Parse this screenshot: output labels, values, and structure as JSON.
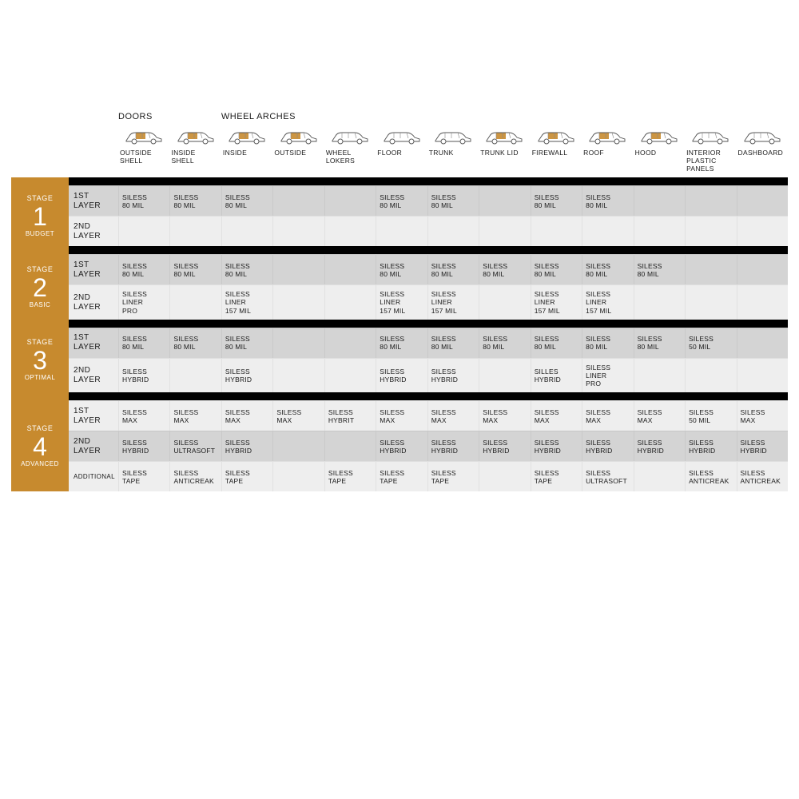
{
  "colors": {
    "accent": "#c78a2e",
    "black": "#000000",
    "shade_a": "#d4d4d4",
    "shade_b": "#eeeeee",
    "white": "#ffffff",
    "text": "#1a1a1a"
  },
  "font": {
    "header_group": 11,
    "col_label": 8.5,
    "layer_label": 10,
    "data_cell": 8.5,
    "stage_word": 9,
    "stage_num": 32,
    "stage_sub": 8
  },
  "group_headers": {
    "doors": "DOORS",
    "wheel_arches": "WHEEL ARCHES"
  },
  "columns": [
    "OUTSIDE\nSHELL",
    "INSIDE\nSHELL",
    "INSIDE",
    "OUTSIDE",
    "WHEEL\nLOKERS",
    "FLOOR",
    "TRUNK",
    "TRUNK\nLID",
    "FIREWALL",
    "ROOF",
    "HOOD",
    "INTERIOR\nPLASTIC\nPANELS",
    "DASHBOARD"
  ],
  "icon_highlight": [
    true,
    true,
    true,
    true,
    false,
    false,
    false,
    true,
    true,
    true,
    true,
    false,
    false
  ],
  "stages": [
    {
      "title": "STAGE",
      "num": "1",
      "sub": "BUDGET",
      "layers": [
        {
          "label": "1ST\nLAYER",
          "shade": "a",
          "cells": [
            "SILESS\n80 MIL",
            "SILESS\n80 MIL",
            "SILESS\n80 MIL",
            "",
            "",
            "SILESS\n80 MIL",
            "SILESS\n80 MIL",
            "",
            "SILESS\n80 MIL",
            "SILESS\n80 MIL",
            "",
            "",
            ""
          ]
        },
        {
          "label": "2ND\nLAYER",
          "shade": "b",
          "cells": [
            "",
            "",
            "",
            "",
            "",
            "",
            "",
            "",
            "",
            "",
            "",
            "",
            ""
          ]
        }
      ]
    },
    {
      "title": "STAGE",
      "num": "2",
      "sub": "BASIC",
      "layers": [
        {
          "label": "1ST\nLAYER",
          "shade": "a",
          "cells": [
            "SILESS\n80 MIL",
            "SILESS\n80 MIL",
            "SILESS\n80 MIL",
            "",
            "",
            "SILESS\n80 MIL",
            "SILESS\n80 MIL",
            "SILESS\n80 MIL",
            "SILESS\n80 MIL",
            "SILESS\n80 MIL",
            "SILESS\n80 MIL",
            "",
            ""
          ]
        },
        {
          "label": "2ND\nLAYER",
          "shade": "b",
          "cells": [
            "SILESS\nLINER\nPRO",
            "",
            "SILESS\nLINER\n157 MIL",
            "",
            "",
            "SILESS\nLINER\n157 MIL",
            "SILESS\nLINER\n157 MIL",
            "",
            "SILESS\nLINER\n157 MIL",
            "SILESS\nLINER\n157 MIL",
            "",
            "",
            ""
          ]
        }
      ]
    },
    {
      "title": "STAGE",
      "num": "3",
      "sub": "OPTIMAL",
      "layers": [
        {
          "label": "1ST\nLAYER",
          "shade": "a",
          "cells": [
            "SILESS\n80 MIL",
            "SILESS\n80 MIL",
            "SILESS\n80 MIL",
            "",
            "",
            "SILESS\n80 MIL",
            "SILESS\n80 MIL",
            "SILESS\n80 MIL",
            "SILESS\n80 MIL",
            "SILESS\n80 MIL",
            "SILESS\n80 MIL",
            "SILESS\n50 MIL",
            ""
          ]
        },
        {
          "label": "2ND\nLAYER",
          "shade": "b",
          "cells": [
            "SILESS\nHYBRID",
            "",
            "SILESS\nHYBRID",
            "",
            "",
            "SILESS\nHYBRID",
            "SILESS\nHYBRID",
            "",
            "SILLES\nHYBRID",
            "SILESS\nLINER\nPRO",
            "",
            "",
            ""
          ]
        }
      ]
    },
    {
      "title": "STAGE",
      "num": "4",
      "sub": "ADVANCED",
      "layers": [
        {
          "label": "1ST\nLAYER",
          "shade": "b",
          "cells": [
            "SILESS\nMAX",
            "SILESS\nMAX",
            "SILESS\nMAX",
            "SILESS\nMAX",
            "SILESS\nHYBRIT",
            "SILESS\nMAX",
            "SILESS\nMAX",
            "SILESS\nMAX",
            "SILESS\nMAX",
            "SILESS\nMAX",
            "SILESS\nMAX",
            "SILESS\n50 MIL",
            "SILESS\nMAX"
          ]
        },
        {
          "label": "2ND\nLAYER",
          "shade": "a",
          "cells": [
            "SILESS\nHYBRID",
            "SILESS\nULTRASOFT",
            "SILESS\nHYBRID",
            "",
            "",
            "SILESS\nHYBRID",
            "SILESS\nHYBRID",
            "SILESS\nHYBRID",
            "SILESS\nHYBRID",
            "SILESS\nHYBRID",
            "SILESS\nHYBRID",
            "SILESS\nHYBRID",
            "SILESS\nHYBRID"
          ]
        },
        {
          "label": "ADDITIONAL",
          "shade": "b",
          "additional": true,
          "cells": [
            "SILESS\nTAPE",
            "SILESS\nANTICREAK",
            "SILESS\nTAPE",
            "",
            "SILESS\nTAPE",
            "SILESS\nTAPE",
            "SILESS\nTAPE",
            "",
            "SILESS\nTAPE",
            "SILESS\nULTRASOFT",
            "",
            "SILESS\nANTICREAK",
            "SILESS\nANTICREAK"
          ]
        }
      ]
    }
  ]
}
